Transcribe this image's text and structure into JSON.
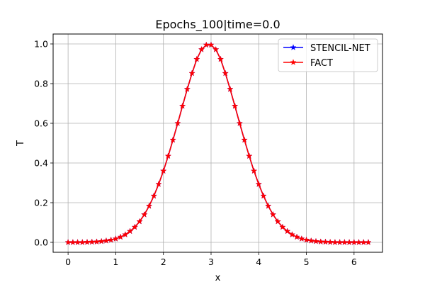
{
  "chart_data": {
    "type": "line",
    "title": "Epochs_100|time=0.0",
    "xlabel": "x",
    "ylabel": "T",
    "xlim": [
      -0.314,
      6.597
    ],
    "ylim": [
      -0.05,
      1.05
    ],
    "xticks": [
      0,
      1,
      2,
      3,
      4,
      5,
      6
    ],
    "xtick_labels": [
      "0",
      "1",
      "2",
      "3",
      "4",
      "5",
      "6"
    ],
    "yticks": [
      0.0,
      0.2,
      0.4,
      0.6,
      0.8,
      1.0
    ],
    "ytick_labels": [
      "0.0",
      "0.2",
      "0.4",
      "0.6",
      "0.8",
      "1.0"
    ],
    "grid": true,
    "legend_position": "top-right",
    "marker": "star",
    "x": [
      0.0,
      0.1,
      0.2,
      0.3,
      0.4,
      0.5,
      0.6,
      0.7,
      0.8,
      0.9,
      1.0,
      1.1,
      1.2,
      1.3,
      1.4,
      1.5,
      1.6,
      1.7,
      1.8,
      1.9,
      2.0,
      2.1,
      2.2,
      2.3,
      2.4,
      2.5,
      2.6,
      2.7,
      2.8,
      2.9,
      3.0,
      3.1,
      3.2,
      3.3,
      3.4,
      3.5,
      3.6,
      3.7,
      3.8,
      3.9,
      4.0,
      4.1,
      4.2,
      4.3,
      4.4,
      4.5,
      4.6,
      4.7,
      4.8,
      4.9,
      5.0,
      5.1,
      5.2,
      5.3,
      5.4,
      5.5,
      5.6,
      5.7,
      5.8,
      5.9,
      6.0,
      6.1,
      6.2,
      6.3
    ],
    "series": [
      {
        "name": "STENCIL-NET",
        "color": "#0000ff",
        "values": [
          0.0,
          0.0,
          0.0,
          0.0,
          0.001,
          0.002,
          0.003,
          0.005,
          0.008,
          0.012,
          0.018,
          0.027,
          0.039,
          0.056,
          0.077,
          0.105,
          0.14,
          0.183,
          0.234,
          0.293,
          0.36,
          0.435,
          0.516,
          0.6,
          0.687,
          0.772,
          0.852,
          0.923,
          0.972,
          0.995,
          0.995,
          0.972,
          0.923,
          0.852,
          0.772,
          0.687,
          0.6,
          0.516,
          0.435,
          0.36,
          0.293,
          0.234,
          0.183,
          0.14,
          0.105,
          0.077,
          0.056,
          0.039,
          0.027,
          0.018,
          0.012,
          0.008,
          0.005,
          0.003,
          0.002,
          0.001,
          0.0,
          0.0,
          0.0,
          0.0,
          0.0,
          0.0,
          0.0,
          0.0
        ]
      },
      {
        "name": "FACT",
        "color": "#ff0000",
        "values": [
          0.0,
          0.0,
          0.0,
          0.0,
          0.001,
          0.002,
          0.003,
          0.005,
          0.008,
          0.012,
          0.018,
          0.027,
          0.039,
          0.056,
          0.077,
          0.105,
          0.14,
          0.183,
          0.234,
          0.293,
          0.36,
          0.435,
          0.516,
          0.6,
          0.687,
          0.772,
          0.852,
          0.923,
          0.972,
          0.995,
          0.995,
          0.972,
          0.923,
          0.852,
          0.772,
          0.687,
          0.6,
          0.516,
          0.435,
          0.36,
          0.293,
          0.234,
          0.183,
          0.14,
          0.105,
          0.077,
          0.056,
          0.039,
          0.027,
          0.018,
          0.012,
          0.008,
          0.005,
          0.003,
          0.002,
          0.001,
          0.0,
          0.0,
          0.0,
          0.0,
          0.0,
          0.0,
          0.0,
          0.0
        ]
      }
    ]
  }
}
